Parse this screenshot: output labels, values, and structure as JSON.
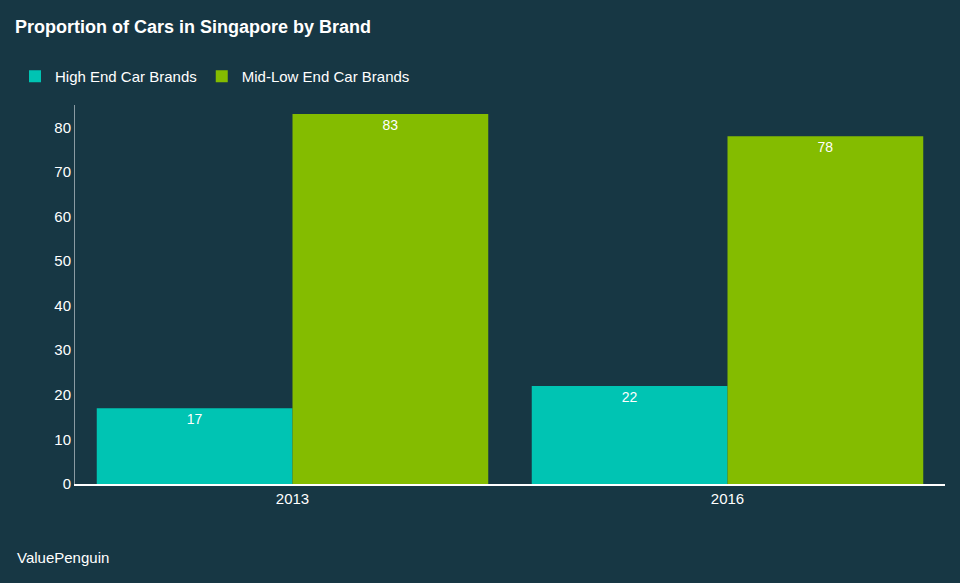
{
  "chart_data": {
    "type": "bar",
    "title": "Proportion of Cars in Singapore by Brand",
    "source": "ValuePenguin",
    "categories": [
      "2013",
      "2016"
    ],
    "series": [
      {
        "name": "High End Car Brands",
        "color": "#00c4b3",
        "values": [
          17,
          22
        ]
      },
      {
        "name": "Mid-Low End Car Brands",
        "color": "#84bc00",
        "values": [
          83,
          78
        ]
      }
    ],
    "ylim": [
      0,
      85
    ],
    "yticks": [
      0,
      10,
      20,
      30,
      40,
      50,
      60,
      70,
      80
    ],
    "grid": false,
    "legend": "top-left",
    "data_labels": true
  }
}
